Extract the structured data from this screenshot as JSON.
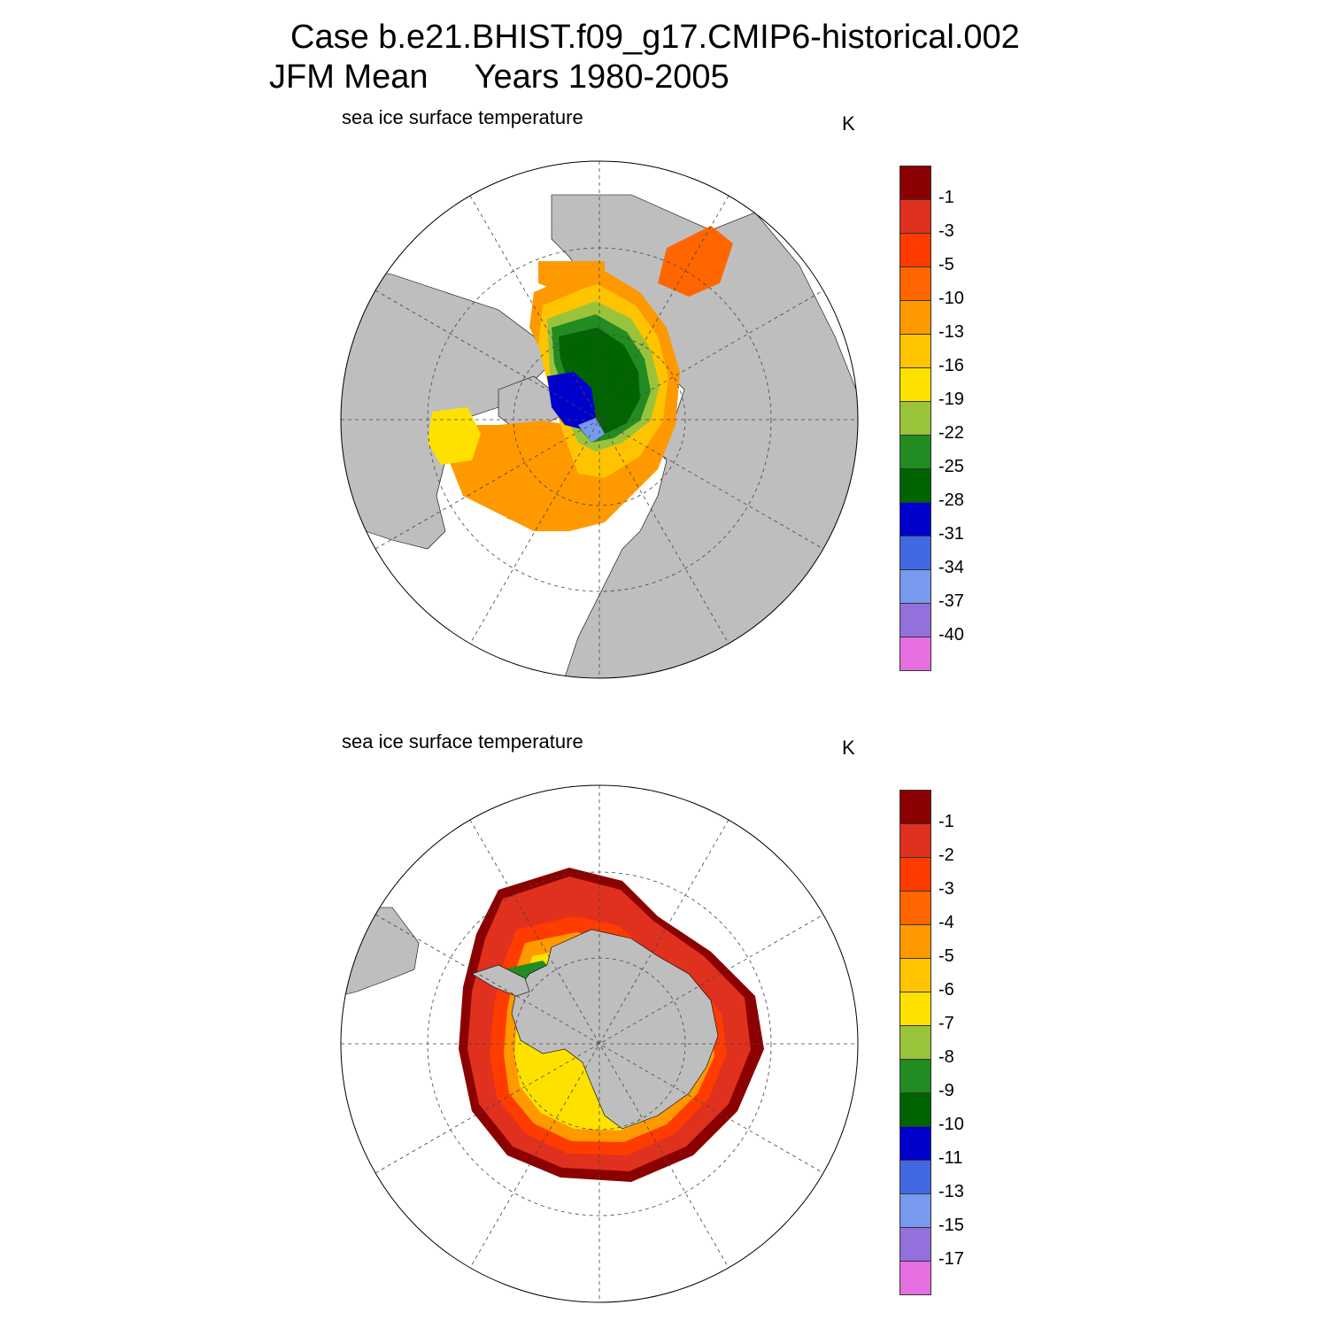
{
  "header": {
    "line1": "Case b.e21.BHIST.f09_g17.CMIP6-historical.002",
    "line2": "JFM Mean     Years 1980-2005"
  },
  "north": {
    "title": "sea ice surface temperature",
    "unit": "K",
    "levels": [
      "-1",
      "-3",
      "-5",
      "-10",
      "-13",
      "-16",
      "-19",
      "-22",
      "-25",
      "-28",
      "-31",
      "-34",
      "-37",
      "-40"
    ],
    "colors": [
      "#8b0000",
      "#e0301e",
      "#ff3c00",
      "#ff6600",
      "#ff9900",
      "#ffc400",
      "#ffe100",
      "#9ac33c",
      "#228b22",
      "#006400",
      "#0000cd",
      "#4169e1",
      "#7799ee",
      "#9370db",
      "#e56ee0"
    ]
  },
  "south": {
    "title": "sea ice surface temperature",
    "unit": "K",
    "levels": [
      "-1",
      "-2",
      "-3",
      "-4",
      "-5",
      "-6",
      "-7",
      "-8",
      "-9",
      "-10",
      "-11",
      "-13",
      "-15",
      "-17"
    ],
    "colors": [
      "#8b0000",
      "#e0301e",
      "#ff3c00",
      "#ff6600",
      "#ff9900",
      "#ffc400",
      "#ffe100",
      "#9ac33c",
      "#228b22",
      "#006400",
      "#0000cd",
      "#4169e1",
      "#7799ee",
      "#9370db",
      "#e56ee0"
    ]
  },
  "style": {
    "land": "#bebebe",
    "ocean": "#ffffff"
  }
}
